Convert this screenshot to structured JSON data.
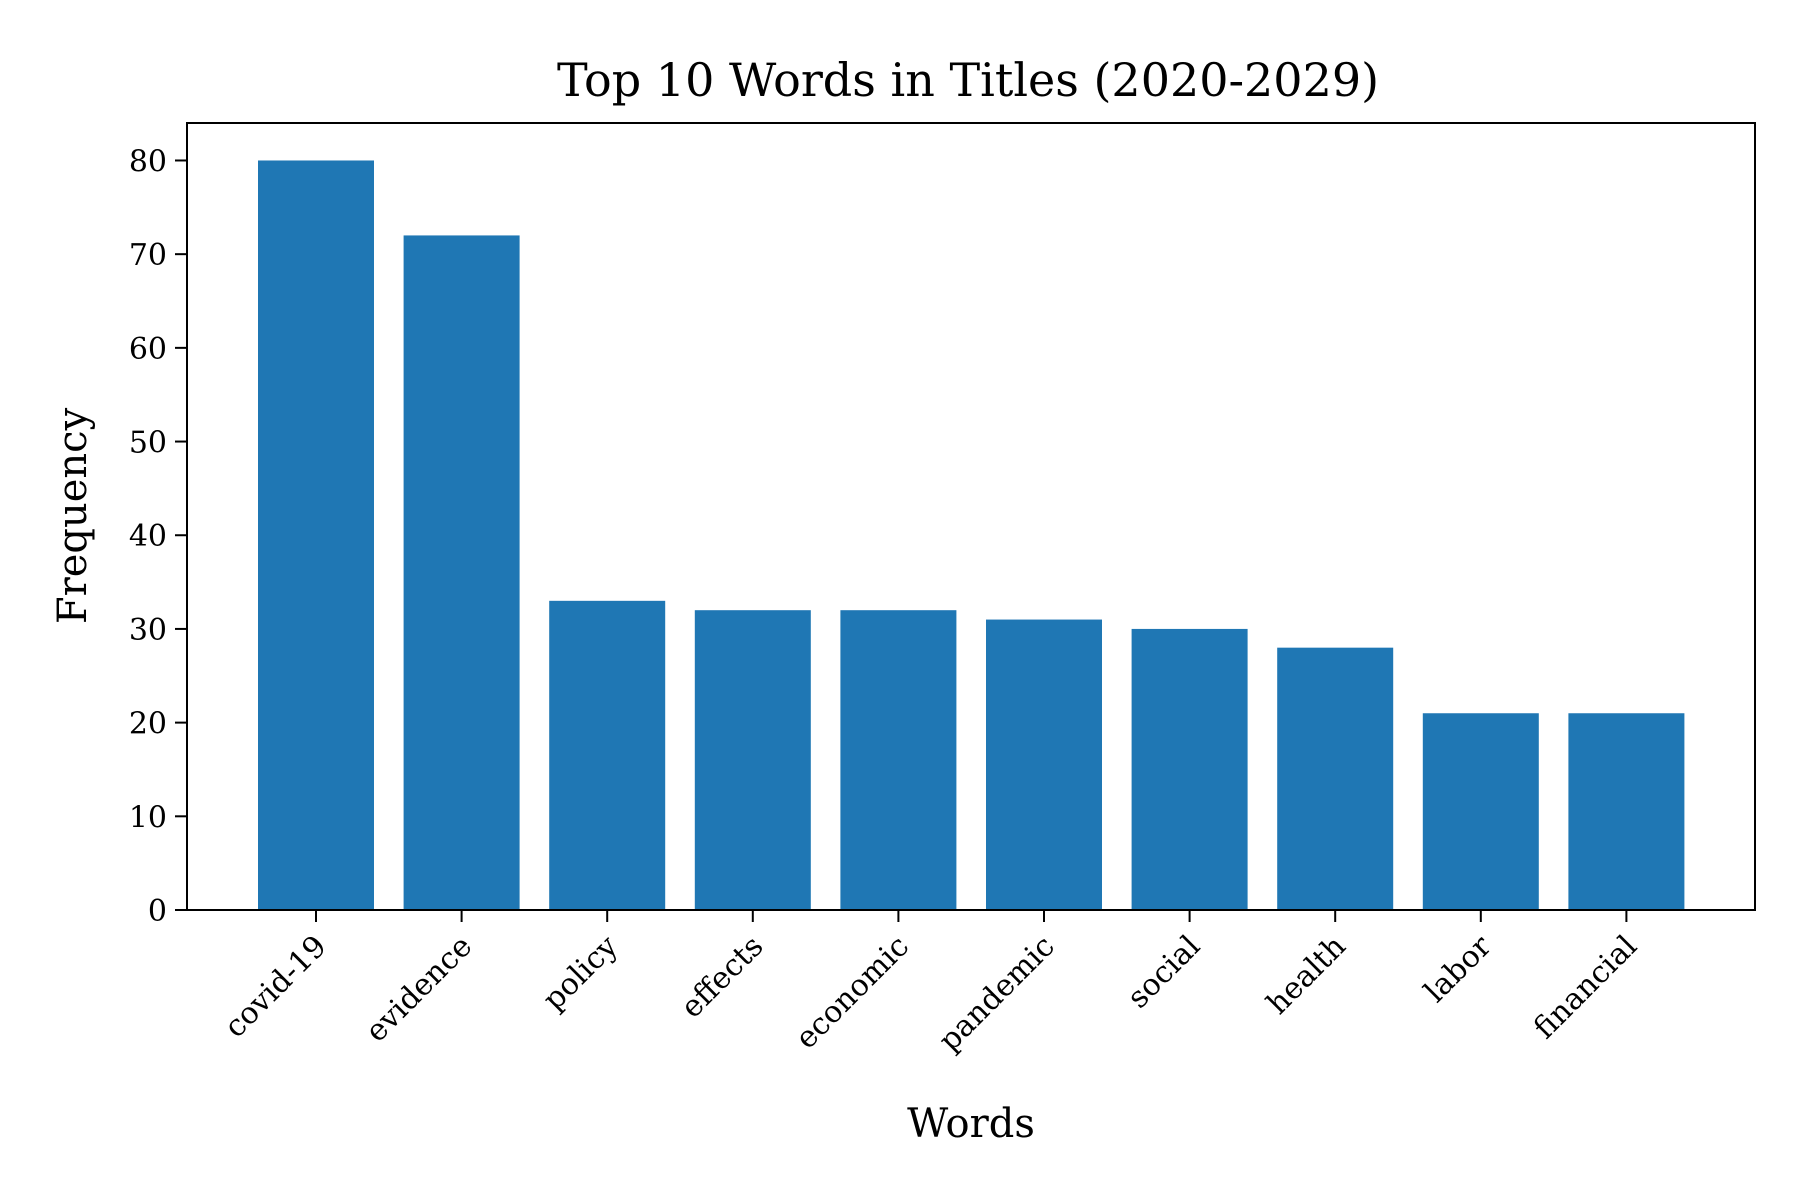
{
  "chart_data": {
    "type": "bar",
    "title": "Top 10 Words in Titles (2020-2029)",
    "xlabel": "Words",
    "ylabel": "Frequency",
    "categories": [
      "covid-19",
      "evidence",
      "policy",
      "effects",
      "economic",
      "pandemic",
      "social",
      "health",
      "labor",
      "financial"
    ],
    "values": [
      80,
      72,
      33,
      32,
      32,
      31,
      30,
      28,
      21,
      21
    ],
    "ylim": [
      0,
      84
    ],
    "yticks": [
      0,
      10,
      20,
      30,
      40,
      50,
      60,
      70,
      80
    ],
    "bar_color": "#1f77b4",
    "grid": false,
    "legend": "none"
  }
}
